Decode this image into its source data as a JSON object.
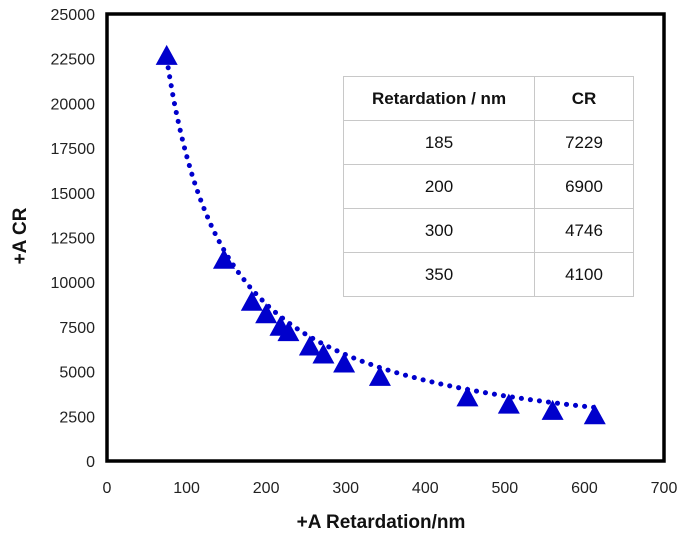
{
  "chart_data": {
    "type": "scatter",
    "title": "",
    "xlabel": "+A Retardation/nm",
    "ylabel": "+A CR",
    "xlim": [
      0,
      700
    ],
    "ylim": [
      0,
      25000
    ],
    "xticks": [
      "0",
      "100",
      "200",
      "300",
      "400",
      "500",
      "600",
      "700"
    ],
    "yticks": [
      "0",
      "2500",
      "5000",
      "7500",
      "10000",
      "12500",
      "15000",
      "17500",
      "20000",
      "22500",
      "25000"
    ],
    "grid": false,
    "series": [
      {
        "name": "+A CR",
        "marker": "triangle",
        "color": "#0000cc",
        "points": [
          {
            "x": 75,
            "y": 22600
          },
          {
            "x": 147,
            "y": 11200
          },
          {
            "x": 182,
            "y": 8850
          },
          {
            "x": 200,
            "y": 8150
          },
          {
            "x": 218,
            "y": 7450
          },
          {
            "x": 228,
            "y": 7150
          },
          {
            "x": 255,
            "y": 6350
          },
          {
            "x": 272,
            "y": 5900
          },
          {
            "x": 298,
            "y": 5400
          },
          {
            "x": 343,
            "y": 4650
          },
          {
            "x": 453,
            "y": 3500
          },
          {
            "x": 505,
            "y": 3100
          },
          {
            "x": 560,
            "y": 2750
          },
          {
            "x": 613,
            "y": 2500
          }
        ]
      }
    ],
    "trendline": {
      "type": "power",
      "style": "dotted",
      "color": "#0000cc",
      "coefficient": 1420000,
      "exponent": -0.96,
      "x_range": [
        75,
        615
      ]
    },
    "inset_table": {
      "headers": [
        "Retardation / nm",
        "CR"
      ],
      "rows": [
        [
          "185",
          "7229"
        ],
        [
          "200",
          "6900"
        ],
        [
          "300",
          "4746"
        ],
        [
          "350",
          "4100"
        ]
      ]
    }
  }
}
